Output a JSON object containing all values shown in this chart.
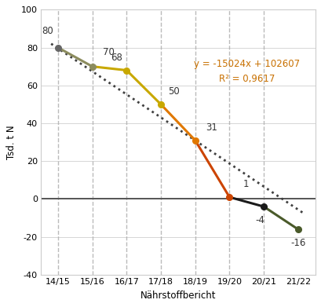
{
  "categories": [
    "14/15",
    "15/16",
    "16/17",
    "17/18",
    "18/19",
    "19/20",
    "20/21",
    "21/22"
  ],
  "values": [
    80,
    70,
    68,
    50,
    31,
    1,
    -4,
    -16
  ],
  "segment_colors": [
    "#8c8c5e",
    "#c8a800",
    "#c8a800",
    "#e07800",
    "#cc4400",
    "#1a1a1a",
    "#4a5a2a"
  ],
  "point_colors": [
    "#666666",
    "#8c8c5e",
    "#c8a800",
    "#c8a800",
    "#e07800",
    "#cc4400",
    "#1a1a1a",
    "#4a5a2a"
  ],
  "trend_line_color": "#404040",
  "zero_line_color": "#555555",
  "vline_color": "#b0b0b0",
  "vline_indices": [
    0,
    1,
    2,
    3,
    4,
    5,
    6
  ],
  "annotation_text": "y = -15024x + 102607\nR² = 0,9617",
  "annotation_color": "#c87000",
  "xlabel": "Nährstoffbericht",
  "ylabel": "Tsd. t N",
  "ylim": [
    -40,
    100
  ],
  "yticks": [
    -40,
    -20,
    0,
    20,
    40,
    60,
    80,
    100
  ],
  "label_fontsize": 8.5,
  "tick_fontsize": 8,
  "background_color": "#ffffff",
  "border_color": "#cccccc"
}
